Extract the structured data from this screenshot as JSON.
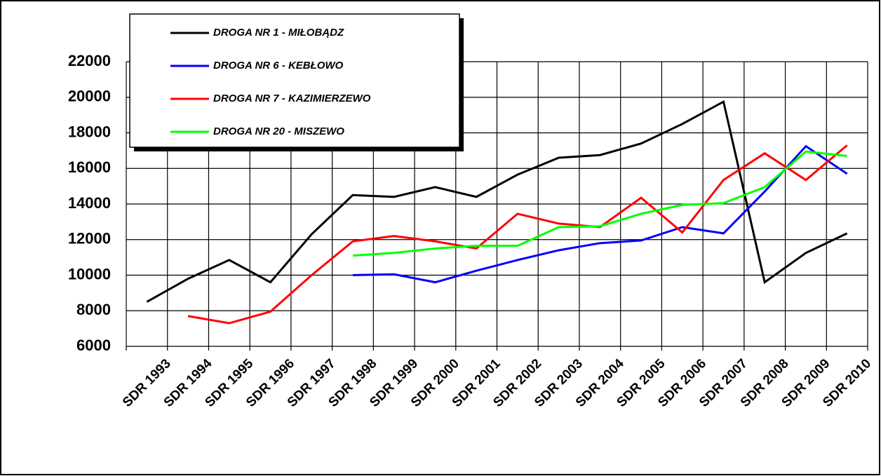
{
  "chart_data": {
    "type": "line",
    "categories": [
      "SDR 1993",
      "SDR 1994",
      "SDR 1995",
      "SDR 1996",
      "SDR 1997",
      "SDR 1998",
      "SDR 1999",
      "SDR 2000",
      "SDR 2001",
      "SDR 2002",
      "SDR 2003",
      "SDR 2004",
      "SDR 2005",
      "SDR 2006",
      "SDR 2007",
      "SDR 2008",
      "SDR 2009",
      "SDR 2010"
    ],
    "series": [
      {
        "name": "DROGA NR 1 - MIŁOBĄDZ",
        "color": "#000000",
        "values": [
          8500,
          9800,
          10850,
          9600,
          12300,
          14500,
          14400,
          14950,
          14400,
          15650,
          16600,
          16750,
          17400,
          18500,
          19750,
          9600,
          11250,
          12350
        ]
      },
      {
        "name": "DROGA NR 6 - KEBŁOWO",
        "color": "#0000ff",
        "values": [
          null,
          null,
          null,
          null,
          null,
          10000,
          10050,
          9600,
          10250,
          10850,
          11400,
          11800,
          11950,
          12700,
          12350,
          14700,
          17250,
          15700
        ]
      },
      {
        "name": "DROGA NR 7 - KAZIMIERZEWO",
        "color": "#ff0000",
        "values": [
          null,
          7700,
          7300,
          7950,
          10000,
          11900,
          12200,
          11900,
          11500,
          13450,
          12900,
          12700,
          14350,
          12400,
          15350,
          16850,
          15350,
          17300
        ]
      },
      {
        "name": "DROGA NR 20 - MISZEWO",
        "color": "#00ff00",
        "values": [
          null,
          null,
          null,
          null,
          null,
          11100,
          11250,
          11500,
          11650,
          11650,
          12700,
          12750,
          13450,
          13950,
          14050,
          14950,
          16950,
          16700
        ]
      }
    ],
    "ylim": [
      6000,
      22000
    ],
    "yticks": [
      6000,
      8000,
      10000,
      12000,
      14000,
      16000,
      18000,
      20000,
      22000
    ],
    "grid": true,
    "legend": "top-left"
  }
}
